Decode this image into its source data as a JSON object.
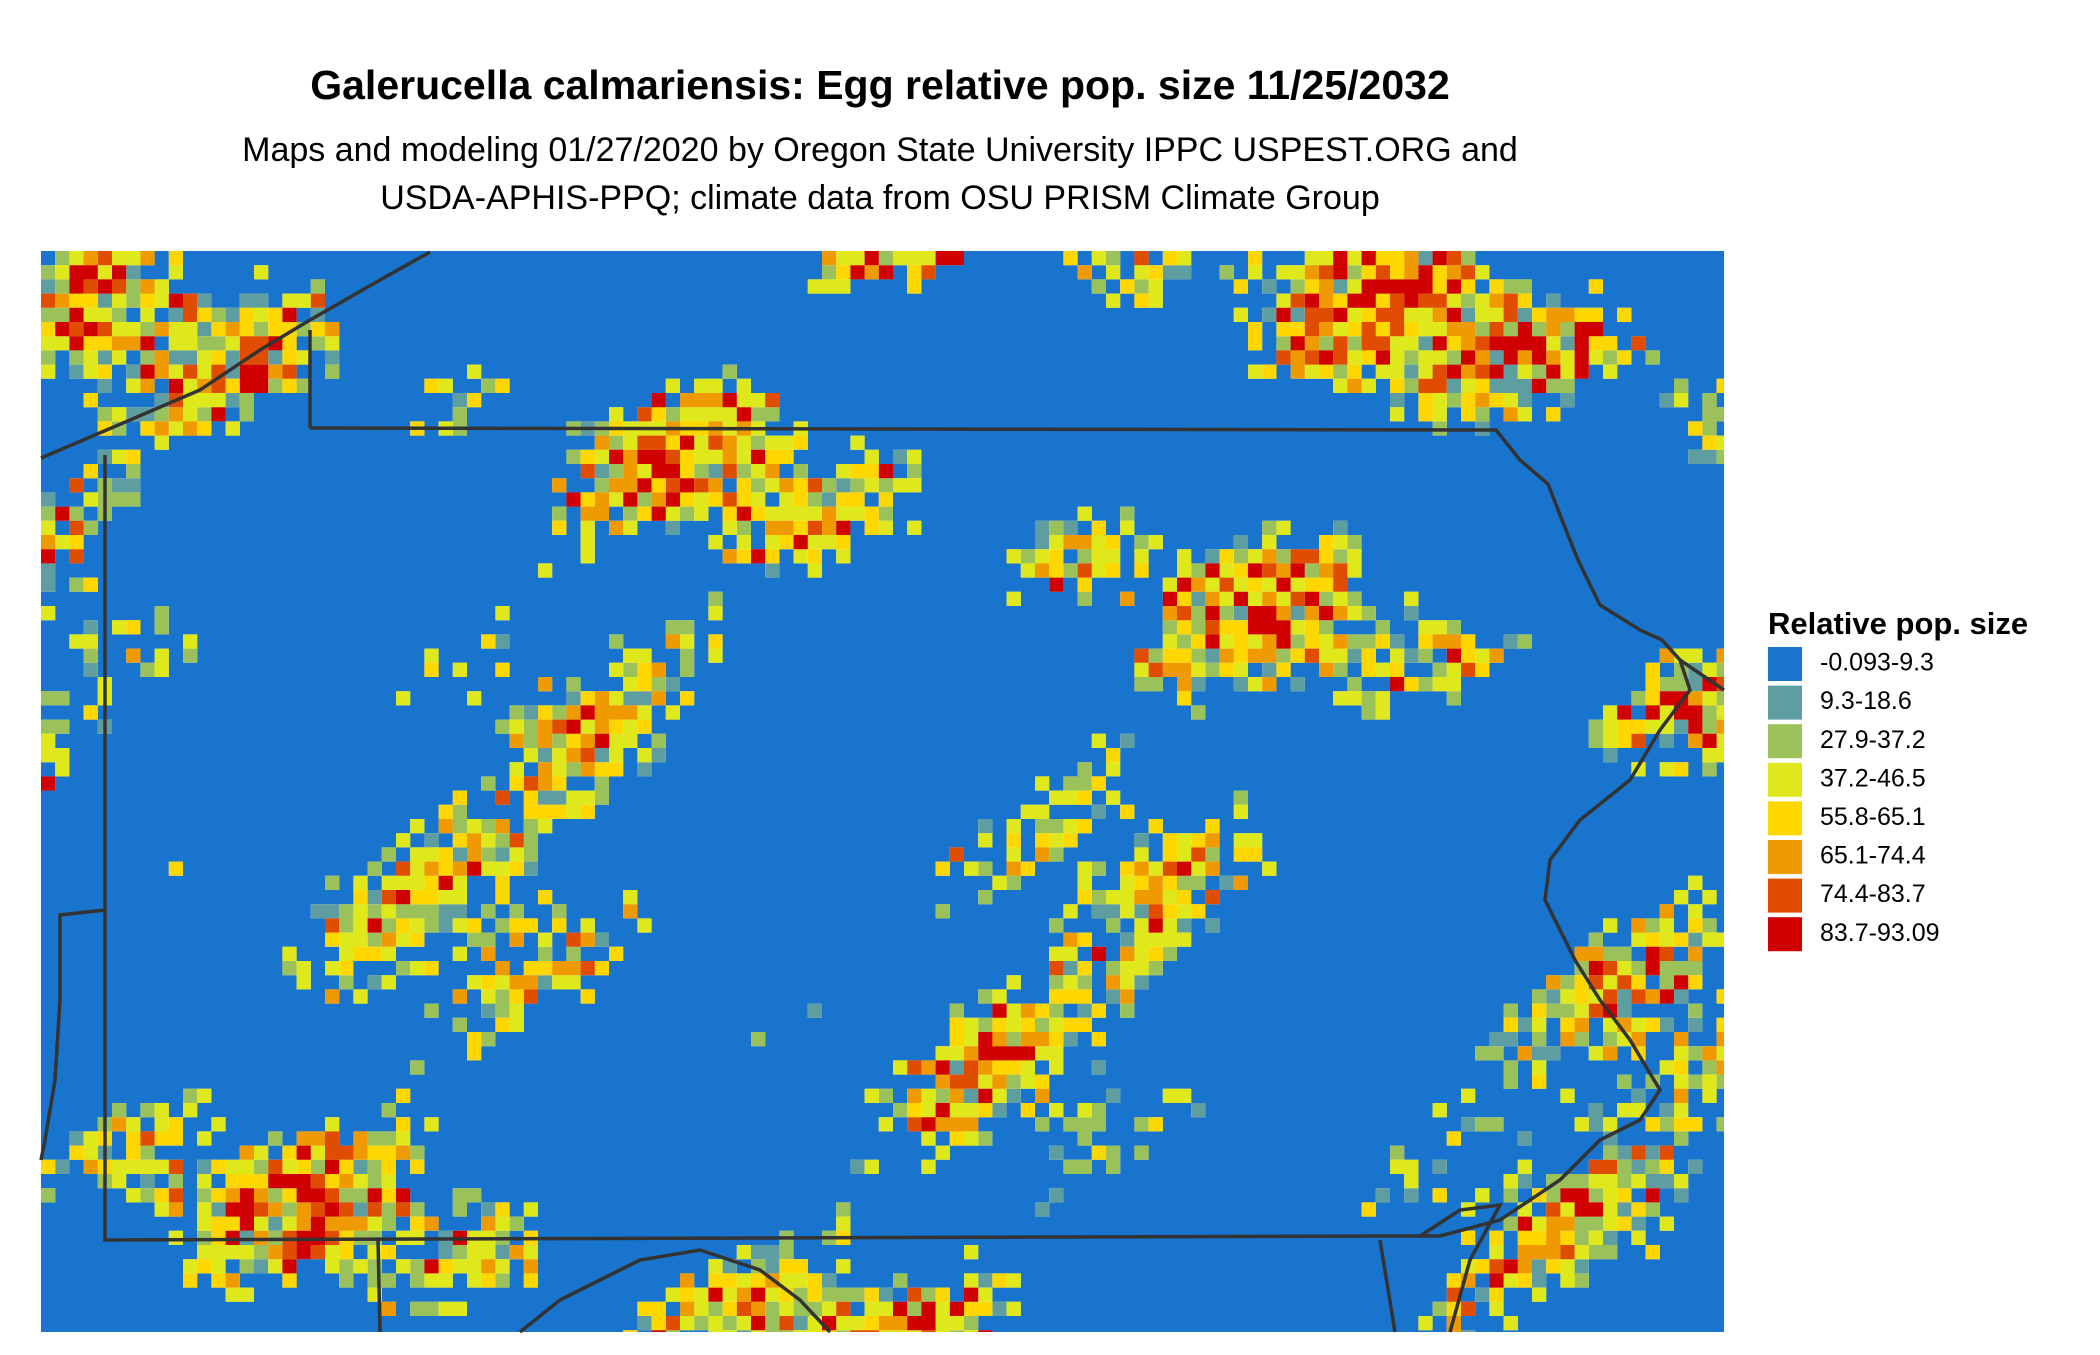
{
  "title": "Galerucella calmariensis: Egg relative pop. size 11/25/2032",
  "subtitle": [
    "Maps and modeling 01/27/2020 by Oregon State University IPPC USPEST.ORG and",
    "USDA-APHIS-PPQ; climate data from OSU PRISM Climate Group"
  ],
  "legend": {
    "title": "Relative pop. size",
    "items": [
      {
        "label": "-0.093-9.3",
        "color": "#1874cd"
      },
      {
        "label": "9.3-18.6",
        "color": "#5f9ea0"
      },
      {
        "label": "27.9-37.2",
        "color": "#9bc25a"
      },
      {
        "label": "37.2-46.5",
        "color": "#dfe81a"
      },
      {
        "label": "55.8-65.1",
        "color": "#ffd700"
      },
      {
        "label": "65.1-74.4",
        "color": "#ee9a00"
      },
      {
        "label": "74.4-83.7",
        "color": "#e04c00"
      },
      {
        "label": "83.7-93.09",
        "color": "#d10000"
      }
    ]
  }
}
